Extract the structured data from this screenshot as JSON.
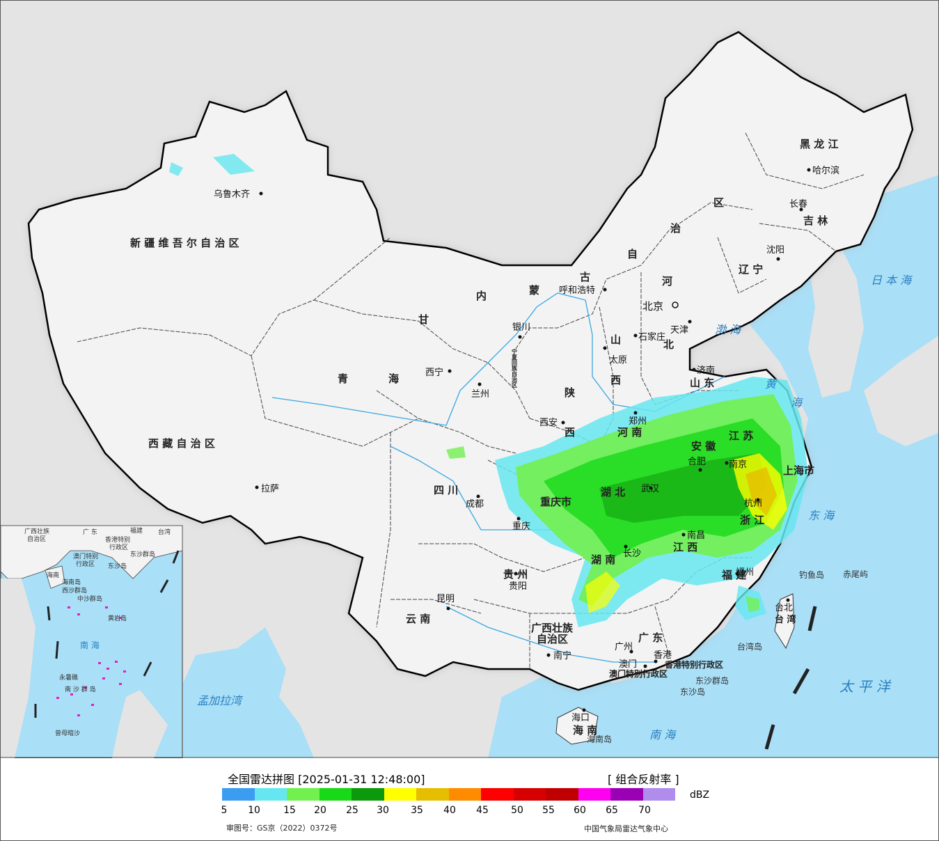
{
  "map": {
    "provinces": {
      "xinjiang": "新 疆 维 吾 尔 自 治 区",
      "xizang": "西 藏 自 治 区",
      "qinghai_1": "青",
      "qinghai_2": "海",
      "gansu": "甘",
      "neimenggu_1": "内",
      "neimenggu_2": "蒙",
      "neimenggu_3": "古",
      "neimenggu_4": "自",
      "neimenggu_5": "治",
      "neimenggu_6": "区",
      "heilongjiang": "黑 龙 江",
      "jilin": "吉 林",
      "liaoning": "辽 宁",
      "hebei_1": "河",
      "hebei_2": "北",
      "shanxi_1": "山",
      "shanxi_2": "西",
      "shaanxi_1": "陕",
      "shaanxi_2": "西",
      "ningxia": "宁夏回族自治区",
      "sichuan": "四 川",
      "chongqing": "重庆市",
      "henan": "河 南",
      "shandong": "山 东",
      "jiangsu": "江 苏",
      "anhui": "安 徽",
      "hubei": "湖 北",
      "shanghai": "上海市",
      "zhejiang": "浙 江",
      "hunan": "湖 南",
      "jiangxi": "江 西",
      "fujian": "福 建",
      "guizhou": "贵 州",
      "yunnan": "云 南",
      "guangxi_1": "广西壮族",
      "guangxi_2": "自治区",
      "guangdong": "广 东",
      "hainan": "海 南",
      "taiwan": "台 湾",
      "hk": "香港特别行政区",
      "macao": "澳门特别行政区"
    },
    "cities": {
      "urumqi": "乌鲁木齐",
      "lhasa": "拉萨",
      "xining": "西宁",
      "lanzhou": "兰州",
      "yinchuan": "银川",
      "hohhot": "呼和浩特",
      "beijing": "北京",
      "tianjin": "天津",
      "shijiazhuang": "石家庄",
      "taiyuan": "太原",
      "jinan": "济南",
      "zhengzhou": "郑州",
      "xian": "西安",
      "chengdu": "成都",
      "chongqing": "重庆",
      "hefei": "合肥",
      "nanjing": "南京",
      "wuhan": "武汉",
      "hangzhou": "杭州",
      "nanchang": "南昌",
      "fuzhou": "福州",
      "taipei": "台北",
      "guiyang": "贵阳",
      "kunming": "昆明",
      "changsha": "长沙",
      "nanning": "南宁",
      "guangzhou": "广州",
      "hongkong": "香港",
      "macau": "澳门",
      "haikou": "海口",
      "harbin": "哈尔滨",
      "changchun": "长春",
      "shenyang": "沈阳",
      "shanghai": "上海"
    },
    "seas": {
      "bohai": "渤 海",
      "huanghai_1": "黄",
      "huanghai_2": "海",
      "donghai": "东 海",
      "nanhai": "南 海",
      "japan_sea": "日 本 海",
      "pacific": "太 平 洋",
      "bengal": "孟加拉湾"
    },
    "islands": {
      "diaoyu": "钓鱼岛",
      "chiwei": "赤尾屿",
      "dongsha_group": "东沙群岛",
      "dongsha": "东沙岛",
      "hainan_island": "海南岛",
      "taiwan_island": "台湾岛"
    }
  },
  "inset": {
    "labels": {
      "guangxi": "广西壮族",
      "guangxi2": "自治区",
      "guangdong": "广 东",
      "fujian": "福建",
      "taiwan": "台湾",
      "hk": "香港特别",
      "hk2": "行政区",
      "macao": "澳门特别",
      "macao2": "行政区",
      "dongsha_group": "东沙群岛",
      "dongsha": "东沙岛",
      "hainan": "海南",
      "hainan_island": "海南岛",
      "xisha": "西沙群岛",
      "zhongsha": "中沙群岛",
      "huangyan": "黄岩岛",
      "yongshu": "永暑礁",
      "nansha": "南 沙 群 岛",
      "nanhai": "南 海",
      "zengmu": "曾母暗沙"
    }
  },
  "legend": {
    "title": "全国雷达拼图 [2025-01-31 12:48:00]",
    "product": "[ 组合反射率 ]",
    "unit": "dBZ",
    "colors": [
      "#3c9cf0",
      "#66e6f0",
      "#72f050",
      "#18d818",
      "#0c9a0c",
      "#ffff00",
      "#e6be00",
      "#ff8c00",
      "#ff0000",
      "#d60000",
      "#c00000",
      "#ff00f0",
      "#9a00b4",
      "#b08cec"
    ],
    "ticks": [
      "5",
      "10",
      "15",
      "20",
      "25",
      "30",
      "35",
      "40",
      "45",
      "50",
      "55",
      "60",
      "65",
      "70"
    ],
    "review": "审图号：GS京（2022）0372号",
    "source": "中国气象局雷达气象中心"
  }
}
